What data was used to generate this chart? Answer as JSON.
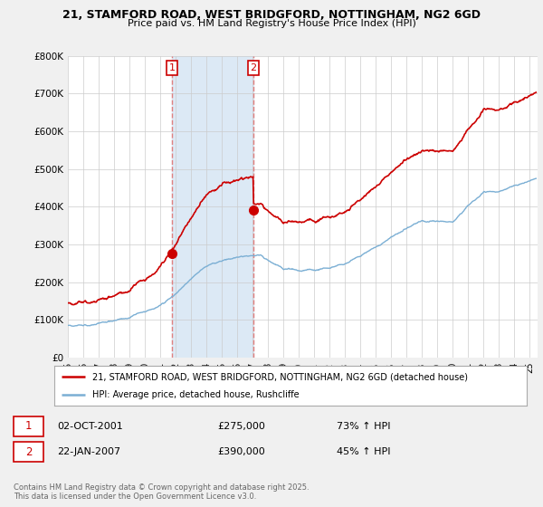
{
  "title_line1": "21, STAMFORD ROAD, WEST BRIDGFORD, NOTTINGHAM, NG2 6GD",
  "title_line2": "Price paid vs. HM Land Registry's House Price Index (HPI)",
  "xlim_start": 1995.0,
  "xlim_end": 2025.5,
  "ylim_bottom": 0,
  "ylim_top": 800000,
  "hpi_color": "#7bafd4",
  "price_color": "#cc0000",
  "vline_color": "#e08080",
  "shade_color": "#dce9f5",
  "transaction1_date": 2001.75,
  "transaction1_price": 275000,
  "transaction1_label": "1",
  "transaction2_date": 2007.05,
  "transaction2_price": 390000,
  "transaction2_label": "2",
  "legend_line1": "21, STAMFORD ROAD, WEST BRIDGFORD, NOTTINGHAM, NG2 6GD (detached house)",
  "legend_line2": "HPI: Average price, detached house, Rushcliffe",
  "footer": "Contains HM Land Registry data © Crown copyright and database right 2025.\nThis data is licensed under the Open Government Licence v3.0.",
  "yticks": [
    0,
    100000,
    200000,
    300000,
    400000,
    500000,
    600000,
    700000,
    800000
  ],
  "ytick_labels": [
    "£0",
    "£100K",
    "£200K",
    "£300K",
    "£400K",
    "£500K",
    "£600K",
    "£700K",
    "£800K"
  ],
  "xticks": [
    1995,
    1996,
    1997,
    1998,
    1999,
    2000,
    2001,
    2002,
    2003,
    2004,
    2005,
    2006,
    2007,
    2008,
    2009,
    2010,
    2011,
    2012,
    2013,
    2014,
    2015,
    2016,
    2017,
    2018,
    2019,
    2020,
    2021,
    2022,
    2023,
    2024,
    2025
  ],
  "background_color": "#f0f0f0",
  "plot_bg_color": "#ffffff"
}
